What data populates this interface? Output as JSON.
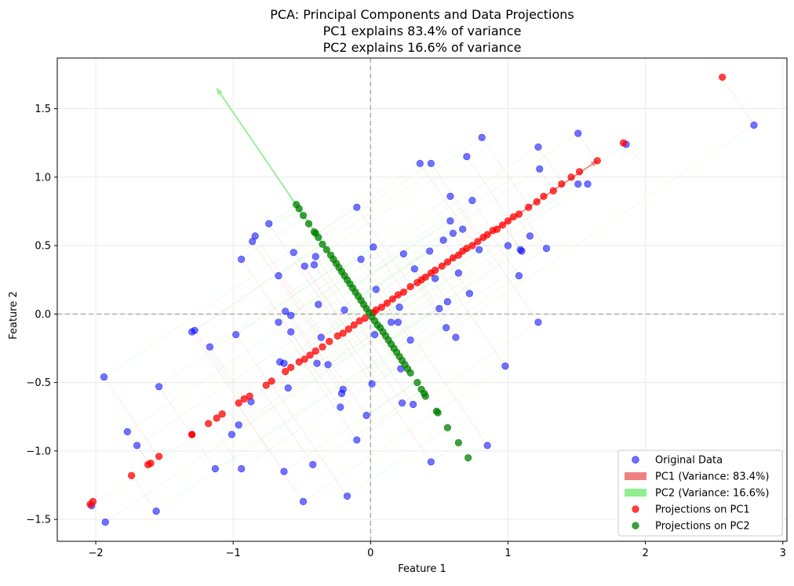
{
  "chart_data": {
    "type": "scatter",
    "title_lines": [
      "PCA: Principal Components and Data Projections",
      "PC1 explains 83.4% of variance",
      "PC2 explains 16.6% of variance"
    ],
    "xlabel": "Feature 1",
    "ylabel": "Feature 2",
    "xlim": [
      -2.28,
      3.03
    ],
    "ylim": [
      -1.66,
      1.87
    ],
    "xticks": [
      -2,
      -1,
      0,
      1,
      2,
      3
    ],
    "yticks": [
      -1.5,
      -1.0,
      -0.5,
      0.0,
      0.5,
      1.0,
      1.5
    ],
    "xtick_labels": [
      "−2",
      "−1",
      "0",
      "1",
      "2",
      "3"
    ],
    "ytick_labels": [
      "−1.5",
      "−1.0",
      "−0.5",
      "0.0",
      "0.5",
      "1.0",
      "1.5"
    ],
    "grid": true,
    "legend_position": "lower-right",
    "legend": [
      {
        "label": "Original Data",
        "kind": "marker",
        "color": "#0000ff",
        "alpha": 0.55
      },
      {
        "label": "PC1 (Variance: 83.4%)",
        "kind": "bar",
        "color": "#f08080"
      },
      {
        "label": "PC2 (Variance: 16.6%)",
        "kind": "bar",
        "color": "#90ee90"
      },
      {
        "label": "Projections on PC1",
        "kind": "marker",
        "color": "#ff0000",
        "alpha": 0.75
      },
      {
        "label": "Projections on PC2",
        "kind": "marker",
        "color": "#008000",
        "alpha": 0.75
      }
    ],
    "pc_vectors": [
      {
        "name": "PC1 (Variance: 83.4%)",
        "color": "#f08080",
        "from": [
          0,
          0
        ],
        "to": [
          1.65,
          1.12
        ]
      },
      {
        "name": "PC2 (Variance: 16.6%)",
        "color": "#90ee90",
        "from": [
          0,
          0
        ],
        "to": [
          -1.12,
          1.65
        ]
      }
    ],
    "series": [
      {
        "name": "Original Data",
        "color": "#0000ff",
        "points": [
          [
            2.79,
            1.38
          ],
          [
            1.86,
            1.24
          ],
          [
            1.51,
            1.32
          ],
          [
            1.22,
            1.22
          ],
          [
            1.58,
            0.95
          ],
          [
            1.51,
            0.95
          ],
          [
            1.23,
            1.06
          ],
          [
            1.16,
            0.57
          ],
          [
            1.28,
            0.48
          ],
          [
            1.09,
            0.47
          ],
          [
            1.1,
            0.46
          ],
          [
            1.0,
            0.5
          ],
          [
            1.08,
            0.28
          ],
          [
            1.22,
            -0.06
          ],
          [
            0.98,
            -0.38
          ],
          [
            0.81,
            1.29
          ],
          [
            0.7,
            1.15
          ],
          [
            0.74,
            0.83
          ],
          [
            0.67,
            0.62
          ],
          [
            0.58,
            0.86
          ],
          [
            0.58,
            0.68
          ],
          [
            0.6,
            0.59
          ],
          [
            0.53,
            0.54
          ],
          [
            0.43,
            0.46
          ],
          [
            0.56,
            0.09
          ],
          [
            0.5,
            0.04
          ],
          [
            0.72,
            0.15
          ],
          [
            0.79,
            0.47
          ],
          [
            0.64,
            0.3
          ],
          [
            0.36,
            1.1
          ],
          [
            0.44,
            1.1
          ],
          [
            0.47,
            0.26
          ],
          [
            0.32,
            0.33
          ],
          [
            0.24,
            0.44
          ],
          [
            0.21,
            0.05
          ],
          [
            0.15,
            -0.06
          ],
          [
            0.2,
            -0.06
          ],
          [
            0.22,
            -0.4
          ],
          [
            0.29,
            -0.19
          ],
          [
            0.55,
            -0.1
          ],
          [
            0.62,
            -0.17
          ],
          [
            0.23,
            -0.65
          ],
          [
            0.31,
            -0.66
          ],
          [
            0.85,
            -0.96
          ],
          [
            0.44,
            -1.08
          ],
          [
            0.02,
            0.49
          ],
          [
            0.04,
            0.18
          ],
          [
            0.03,
            -0.15
          ],
          [
            0.01,
            -0.51
          ],
          [
            -0.03,
            -0.74
          ],
          [
            -0.1,
            -0.92
          ],
          [
            -0.17,
            -1.33
          ],
          [
            -0.1,
            0.78
          ],
          [
            -0.07,
            0.4
          ],
          [
            -0.19,
            0.03
          ],
          [
            -0.2,
            -0.55
          ],
          [
            -0.21,
            -0.58
          ],
          [
            -0.22,
            -0.68
          ],
          [
            -0.31,
            -0.37
          ],
          [
            -0.39,
            -0.36
          ],
          [
            -0.38,
            0.07
          ],
          [
            -0.4,
            0.42
          ],
          [
            -0.41,
            0.36
          ],
          [
            -0.48,
            0.35
          ],
          [
            -0.36,
            -0.17
          ],
          [
            -0.56,
            0.45
          ],
          [
            -0.58,
            -0.13
          ],
          [
            -0.58,
            -0.01
          ],
          [
            -0.62,
            0.02
          ],
          [
            -0.6,
            -0.54
          ],
          [
            -0.63,
            -0.36
          ],
          [
            -0.66,
            -0.35
          ],
          [
            -0.67,
            -0.06
          ],
          [
            -0.67,
            0.28
          ],
          [
            -0.74,
            0.66
          ],
          [
            -0.84,
            0.57
          ],
          [
            -0.86,
            0.53
          ],
          [
            -0.94,
            0.4
          ],
          [
            -0.98,
            -0.15
          ],
          [
            -0.96,
            -0.81
          ],
          [
            -1.01,
            -0.88
          ],
          [
            -0.87,
            -0.64
          ],
          [
            -0.94,
            -1.13
          ],
          [
            -1.13,
            -1.13
          ],
          [
            -1.17,
            -0.24
          ],
          [
            -1.28,
            -0.12
          ],
          [
            -1.3,
            -0.13
          ],
          [
            -1.94,
            -0.46
          ],
          [
            -1.77,
            -0.86
          ],
          [
            -1.7,
            -0.96
          ],
          [
            -1.54,
            -0.53
          ],
          [
            -2.03,
            -1.4
          ],
          [
            -1.93,
            -1.52
          ],
          [
            -1.56,
            -1.44
          ],
          [
            -0.63,
            -1.15
          ],
          [
            -0.42,
            -1.1
          ],
          [
            -0.49,
            -1.37
          ]
        ]
      },
      {
        "name": "Projections on PC1",
        "color": "#ff0000",
        "points": [
          [
            2.56,
            1.73
          ],
          [
            1.84,
            1.25
          ],
          [
            1.65,
            1.12
          ],
          [
            1.52,
            1.04
          ],
          [
            1.46,
            1.0
          ],
          [
            1.39,
            0.95
          ],
          [
            1.33,
            0.9
          ],
          [
            1.26,
            0.86
          ],
          [
            1.21,
            0.82
          ],
          [
            1.15,
            0.78
          ],
          [
            1.08,
            0.73
          ],
          [
            1.04,
            0.71
          ],
          [
            1.0,
            0.68
          ],
          [
            0.96,
            0.65
          ],
          [
            0.92,
            0.62
          ],
          [
            0.89,
            0.61
          ],
          [
            0.85,
            0.58
          ],
          [
            0.82,
            0.56
          ],
          [
            0.78,
            0.53
          ],
          [
            0.74,
            0.5
          ],
          [
            0.7,
            0.48
          ],
          [
            0.67,
            0.46
          ],
          [
            0.64,
            0.43
          ],
          [
            0.6,
            0.41
          ],
          [
            0.56,
            0.38
          ],
          [
            0.52,
            0.35
          ],
          [
            0.47,
            0.32
          ],
          [
            0.44,
            0.3
          ],
          [
            0.4,
            0.27
          ],
          [
            0.37,
            0.25
          ],
          [
            0.34,
            0.23
          ],
          [
            0.29,
            0.2
          ],
          [
            0.24,
            0.16
          ],
          [
            0.2,
            0.14
          ],
          [
            0.16,
            0.11
          ],
          [
            0.12,
            0.08
          ],
          [
            0.08,
            0.05
          ],
          [
            0.04,
            0.03
          ],
          [
            0.02,
            0.01
          ],
          [
            -0.04,
            -0.03
          ],
          [
            -0.08,
            -0.05
          ],
          [
            -0.12,
            -0.08
          ],
          [
            -0.16,
            -0.11
          ],
          [
            -0.2,
            -0.14
          ],
          [
            -0.24,
            -0.16
          ],
          [
            -0.3,
            -0.2
          ],
          [
            -0.35,
            -0.24
          ],
          [
            -0.4,
            -0.27
          ],
          [
            -0.44,
            -0.3
          ],
          [
            -0.48,
            -0.33
          ],
          [
            -0.52,
            -0.35
          ],
          [
            -0.58,
            -0.39
          ],
          [
            -0.62,
            -0.42
          ],
          [
            -0.72,
            -0.49
          ],
          [
            -0.76,
            -0.52
          ],
          [
            -0.88,
            -0.6
          ],
          [
            -0.92,
            -0.62
          ],
          [
            -0.96,
            -0.65
          ],
          [
            -1.08,
            -0.73
          ],
          [
            -1.12,
            -0.76
          ],
          [
            -1.18,
            -0.8
          ],
          [
            -1.3,
            -0.88
          ],
          [
            -1.3,
            -0.88
          ],
          [
            -1.54,
            -1.04
          ],
          [
            -1.6,
            -1.09
          ],
          [
            -1.62,
            -1.1
          ],
          [
            -1.74,
            -1.18
          ],
          [
            -2.02,
            -1.37
          ],
          [
            -2.04,
            -1.39
          ]
        ]
      },
      {
        "name": "Projections on PC2",
        "color": "#008000",
        "points": [
          [
            -0.54,
            0.8
          ],
          [
            -0.52,
            0.77
          ],
          [
            -0.49,
            0.72
          ],
          [
            -0.45,
            0.66
          ],
          [
            -0.41,
            0.6
          ],
          [
            -0.4,
            0.59
          ],
          [
            -0.38,
            0.56
          ],
          [
            -0.35,
            0.51
          ],
          [
            -0.32,
            0.47
          ],
          [
            -0.29,
            0.43
          ],
          [
            -0.27,
            0.4
          ],
          [
            -0.25,
            0.37
          ],
          [
            -0.23,
            0.34
          ],
          [
            -0.21,
            0.31
          ],
          [
            -0.19,
            0.28
          ],
          [
            -0.17,
            0.25
          ],
          [
            -0.15,
            0.22
          ],
          [
            -0.13,
            0.19
          ],
          [
            -0.11,
            0.16
          ],
          [
            -0.09,
            0.13
          ],
          [
            -0.07,
            0.1
          ],
          [
            -0.05,
            0.07
          ],
          [
            -0.03,
            0.04
          ],
          [
            -0.01,
            0.01
          ],
          [
            0.01,
            -0.02
          ],
          [
            0.03,
            -0.05
          ],
          [
            0.05,
            -0.08
          ],
          [
            0.07,
            -0.1
          ],
          [
            0.09,
            -0.13
          ],
          [
            0.11,
            -0.16
          ],
          [
            0.13,
            -0.19
          ],
          [
            0.15,
            -0.22
          ],
          [
            0.17,
            -0.25
          ],
          [
            0.19,
            -0.28
          ],
          [
            0.21,
            -0.31
          ],
          [
            0.23,
            -0.34
          ],
          [
            0.25,
            -0.37
          ],
          [
            0.27,
            -0.4
          ],
          [
            0.29,
            -0.43
          ],
          [
            0.34,
            -0.5
          ],
          [
            0.37,
            -0.55
          ],
          [
            0.39,
            -0.58
          ],
          [
            0.4,
            -0.6
          ],
          [
            0.48,
            -0.71
          ],
          [
            0.49,
            -0.72
          ],
          [
            0.56,
            -0.83
          ],
          [
            0.64,
            -0.94
          ],
          [
            0.71,
            -1.05
          ]
        ]
      }
    ]
  }
}
